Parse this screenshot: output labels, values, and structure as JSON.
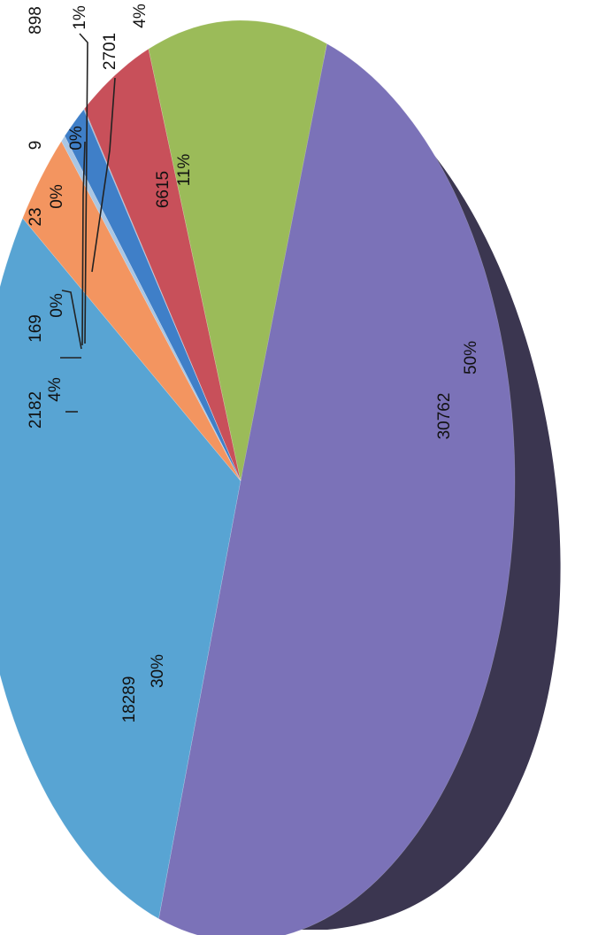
{
  "chart_data": {
    "type": "pie",
    "style": "3d-rotated",
    "slices": [
      {
        "value": 30762,
        "percent": "50%",
        "color": "#7b72b8"
      },
      {
        "value": 18289,
        "percent": "30%",
        "color": "#58a4d3"
      },
      {
        "value": 2182,
        "percent": "4%",
        "color": "#f39560"
      },
      {
        "value": 169,
        "percent": "0%",
        "color": "#a9c6e4"
      },
      {
        "value": 898,
        "percent": "1%",
        "color": "#3f7fc8"
      },
      {
        "value": 23,
        "percent": "0%",
        "color": "#7aa0c8"
      },
      {
        "value": 9,
        "percent": "0%",
        "color": "#6f8fb0"
      },
      {
        "value": 2701,
        "percent": "4%",
        "color": "#c8505a"
      },
      {
        "value": 6615,
        "percent": "11%",
        "color": "#9bbb59"
      }
    ],
    "side_color": "#3b3650"
  }
}
